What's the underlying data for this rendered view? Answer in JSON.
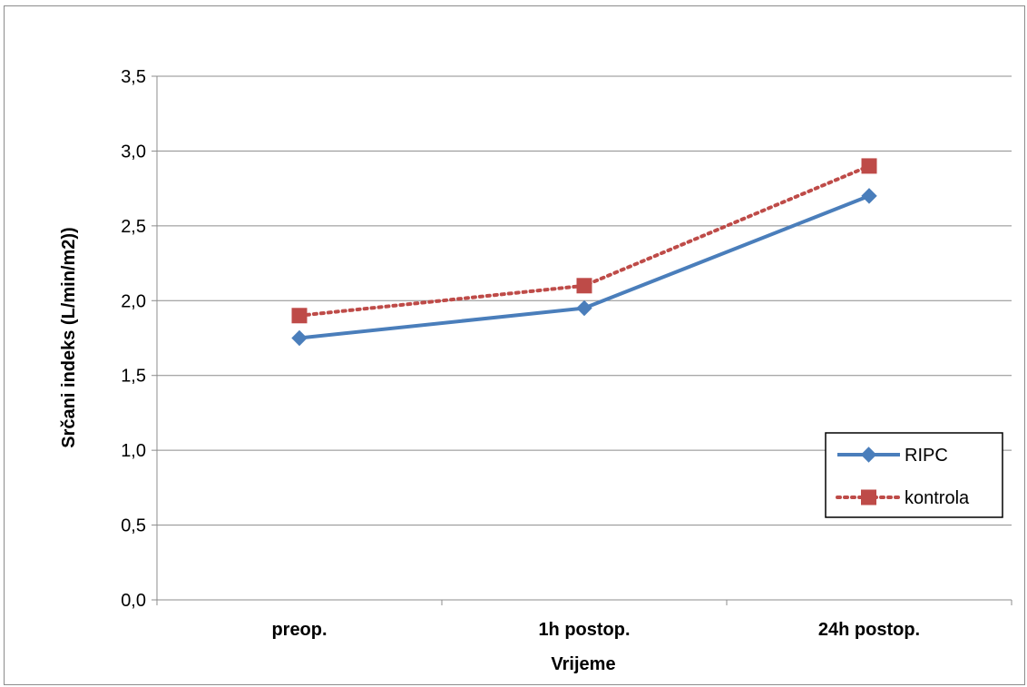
{
  "chart_data": {
    "type": "line",
    "categories": [
      "preop.",
      "1h postop.",
      "24h postop."
    ],
    "xlabel": "Vrijeme",
    "ylabel": "Srčani indeks (L/min/m2))",
    "ylim": [
      0,
      3.5
    ],
    "yticks": [
      "0,0",
      "0,5",
      "1,0",
      "1,5",
      "2,0",
      "2,5",
      "3,0",
      "3,5"
    ],
    "grid": true,
    "legend_position": "right",
    "series": [
      {
        "name": "RIPC",
        "values": [
          1.75,
          1.95,
          2.7
        ],
        "color": "#4a7ebb",
        "style": "solid",
        "marker": "diamond"
      },
      {
        "name": "kontrola",
        "values": [
          1.9,
          2.1,
          2.9
        ],
        "color": "#be4b48",
        "style": "dotted",
        "marker": "square"
      }
    ]
  }
}
